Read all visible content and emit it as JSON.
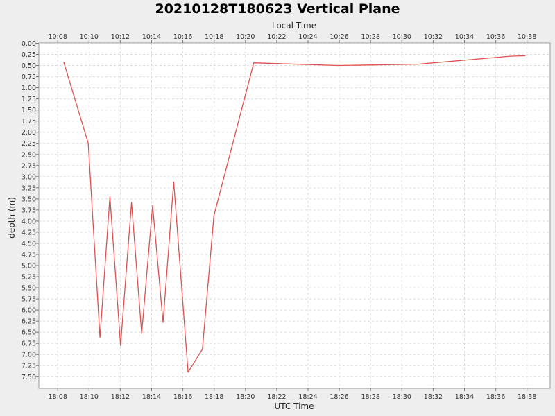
{
  "chart_data": {
    "type": "line",
    "title": "20210128T180623 Vertical Plane",
    "xlabel": "UTC Time",
    "x2label": "Local Time",
    "ylabel": "depth (m)",
    "y_inverted": true,
    "ylim": [
      0,
      7.75
    ],
    "y_ticks": [
      "0.00",
      "0.25",
      "0.50",
      "0.75",
      "1.00",
      "1.25",
      "1.50",
      "1.75",
      "2.00",
      "2.25",
      "2.50",
      "2.75",
      "3.00",
      "3.25",
      "3.50",
      "3.75",
      "4.00",
      "4.25",
      "4.50",
      "4.75",
      "5.00",
      "5.25",
      "5.50",
      "5.75",
      "6.00",
      "6.25",
      "6.50",
      "6.75",
      "7.00",
      "7.25",
      "7.50"
    ],
    "x_ticks_utc": [
      "18:08",
      "18:10",
      "18:12",
      "18:14",
      "18:16",
      "18:18",
      "18:20",
      "18:22",
      "18:24",
      "18:26",
      "18:28",
      "18:30",
      "18:32",
      "18:34",
      "18:36",
      "18:38"
    ],
    "x_ticks_local": [
      "10:08",
      "10:10",
      "10:12",
      "10:14",
      "10:16",
      "10:18",
      "10:20",
      "10:22",
      "10:24",
      "10:26",
      "10:28",
      "10:30",
      "10:32",
      "10:34",
      "10:36",
      "10:38"
    ],
    "grid": true,
    "line_color": "#e05050",
    "series": [
      {
        "points": [
          [
            "18:08:23",
            0.42
          ],
          [
            "18:09:57",
            2.25
          ],
          [
            "18:10:42",
            6.62
          ],
          [
            "18:11:20",
            3.45
          ],
          [
            "18:12:01",
            6.8
          ],
          [
            "18:12:43",
            3.58
          ],
          [
            "18:13:22",
            6.53
          ],
          [
            "18:14:04",
            3.65
          ],
          [
            "18:14:44",
            6.28
          ],
          [
            "18:15:25",
            3.12
          ],
          [
            "18:16:20",
            7.4
          ],
          [
            "18:17:15",
            6.88
          ],
          [
            "18:17:59",
            3.88
          ],
          [
            "18:20:32",
            0.44
          ],
          [
            "18:25:56",
            0.5
          ],
          [
            "18:31:02",
            0.47
          ],
          [
            "18:36:56",
            0.29
          ],
          [
            "18:37:54",
            0.28
          ]
        ]
      }
    ]
  }
}
